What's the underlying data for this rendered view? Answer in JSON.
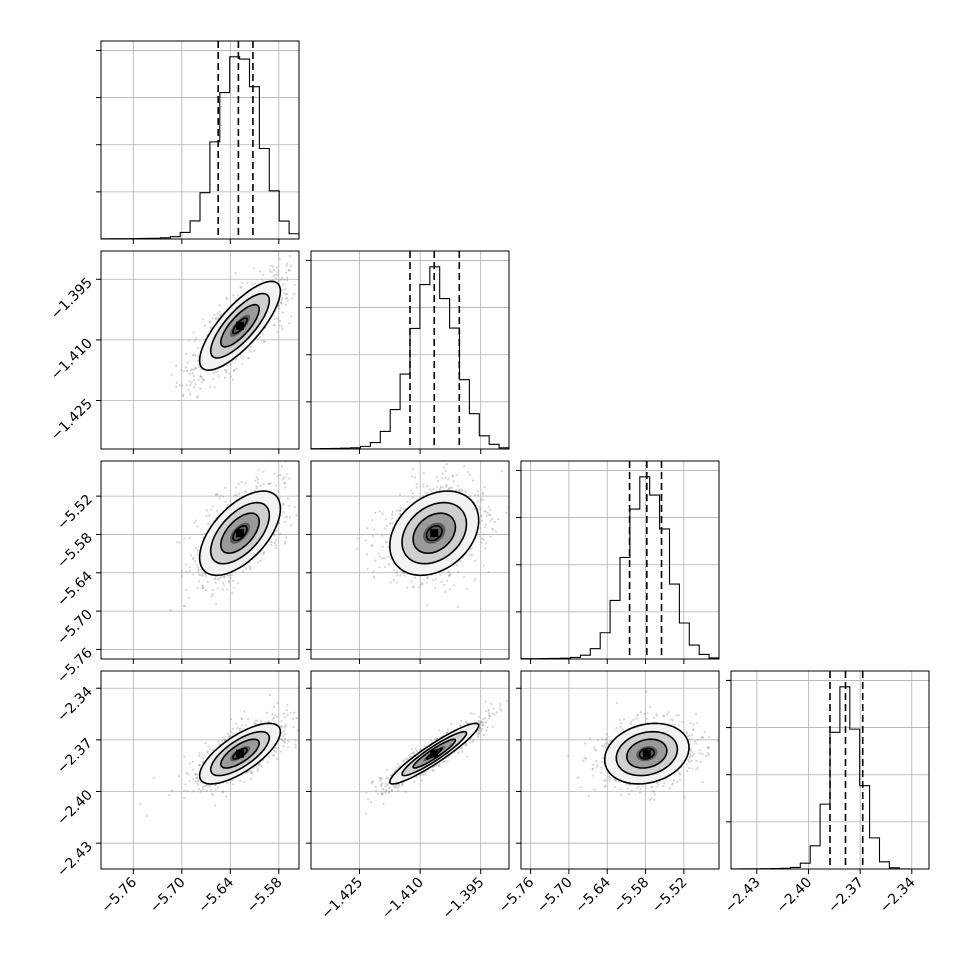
{
  "chart_data": {
    "type": "corner",
    "parameters": [
      {
        "name": "",
        "center": -5.628,
        "sigma": 0.025,
        "range": [
          -5.8,
          -5.555
        ],
        "ticks": [
          -5.76,
          -5.7,
          -5.64,
          -5.58
        ],
        "tick_labels": [
          "−5.76",
          "−5.70",
          "−5.64",
          "−5.58"
        ],
        "quantiles": [
          -5.655,
          -5.63,
          -5.612
        ]
      },
      {
        "name": "",
        "center": -1.4065,
        "sigma": 0.0055,
        "range": [
          -1.437,
          -1.388
        ],
        "ticks": [
          -1.425,
          -1.41,
          -1.395
        ],
        "tick_labels": [
          "−1.425",
          "−1.410",
          "−1.395"
        ],
        "quantiles": [
          -1.4125,
          -1.4065,
          -1.4003
        ]
      },
      {
        "name": "",
        "center": -5.578,
        "sigma": 0.033,
        "range": [
          -5.775,
          -5.465
        ],
        "ticks": [
          -5.76,
          -5.7,
          -5.64,
          -5.58,
          -5.52
        ],
        "tick_labels": [
          "−5.76",
          "−5.70",
          "−5.64",
          "−5.58",
          "−5.52"
        ],
        "quantiles": [
          -5.605,
          -5.578,
          -5.555
        ]
      },
      {
        "name": "",
        "center": -2.378,
        "sigma": 0.0088,
        "range": [
          -2.445,
          -2.33
        ],
        "ticks": [
          -2.43,
          -2.4,
          -2.37,
          -2.34
        ],
        "tick_labels": [
          "−2.43",
          "−2.40",
          "−2.37",
          "−2.34"
        ],
        "quantiles": [
          -2.3875,
          -2.3785,
          -2.3685
        ]
      }
    ],
    "correlations": [
      [
        1,
        0.78,
        0.58,
        0.72
      ],
      [
        0.78,
        1,
        0.3,
        0.93
      ],
      [
        0.58,
        0.3,
        1,
        0.2
      ],
      [
        0.72,
        0.93,
        0.2,
        1
      ]
    ],
    "grid": true,
    "legend": "none"
  }
}
